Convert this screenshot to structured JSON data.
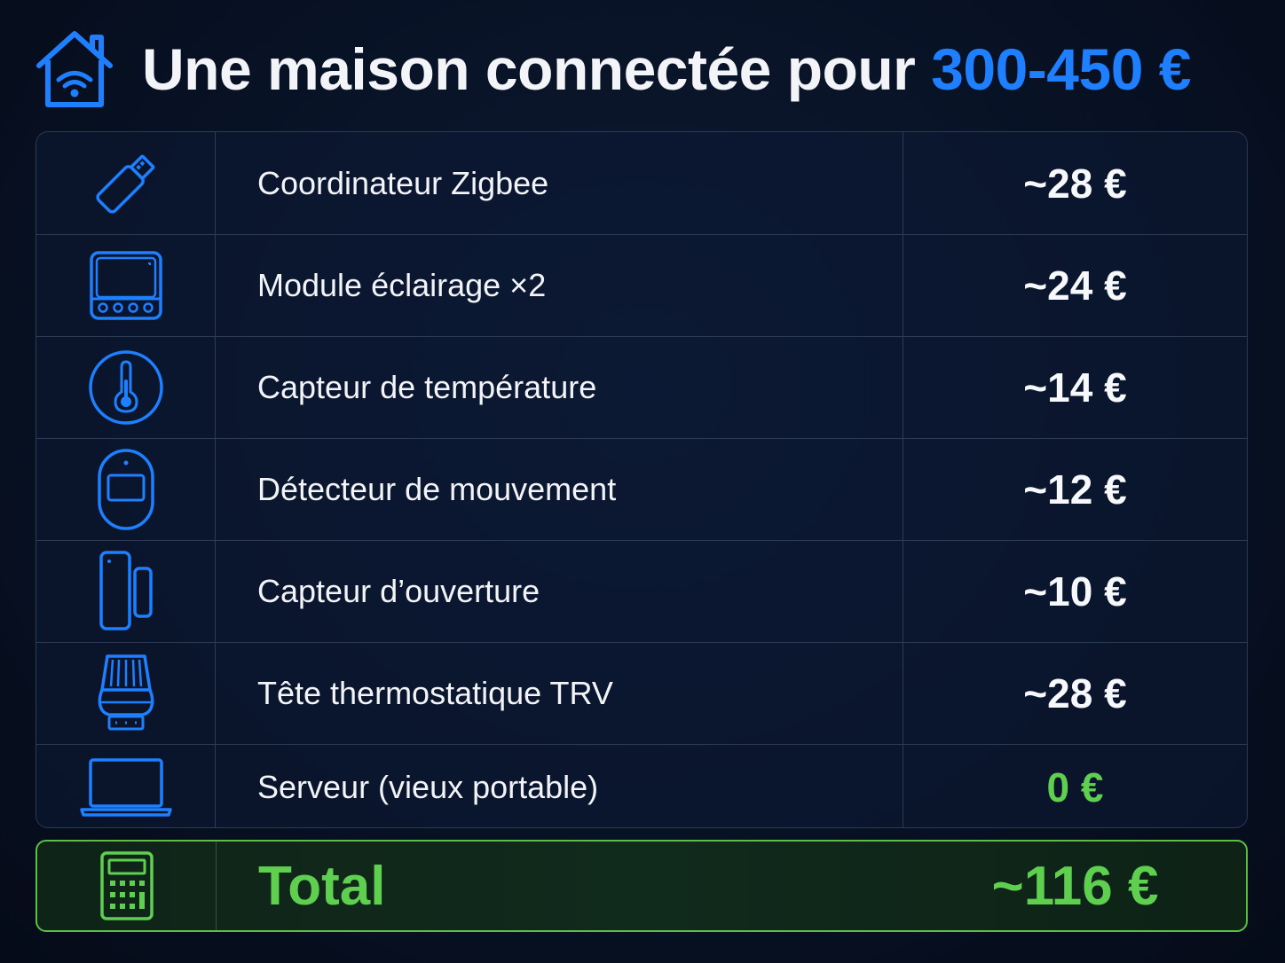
{
  "title": {
    "main": "Une maison connectée pour ",
    "accent": "300-450 €"
  },
  "colors": {
    "accent_blue": "#1e7fff",
    "green": "#5fcf4f",
    "background": "#081225"
  },
  "items": [
    {
      "icon": "usb-dongle-icon",
      "label": "Coordinateur Zigbee",
      "price": "~28 €"
    },
    {
      "icon": "relay-module-icon",
      "label": "Module éclairage ×2",
      "price": "~24 €"
    },
    {
      "icon": "thermometer-icon",
      "label": "Capteur de température",
      "price": "~14 €"
    },
    {
      "icon": "motion-sensor-icon",
      "label": "Détecteur de mouvement",
      "price": "~12 €"
    },
    {
      "icon": "door-sensor-icon",
      "label": "Capteur d’ouverture",
      "price": "~10 €"
    },
    {
      "icon": "radiator-valve-icon",
      "label": "Tête thermostatique TRV",
      "price": "~28 €"
    },
    {
      "icon": "laptop-icon",
      "label": "Serveur (vieux portable)",
      "price": "0 €"
    }
  ],
  "total": {
    "icon": "calculator-icon",
    "label": "Total",
    "price": "~116 €"
  }
}
